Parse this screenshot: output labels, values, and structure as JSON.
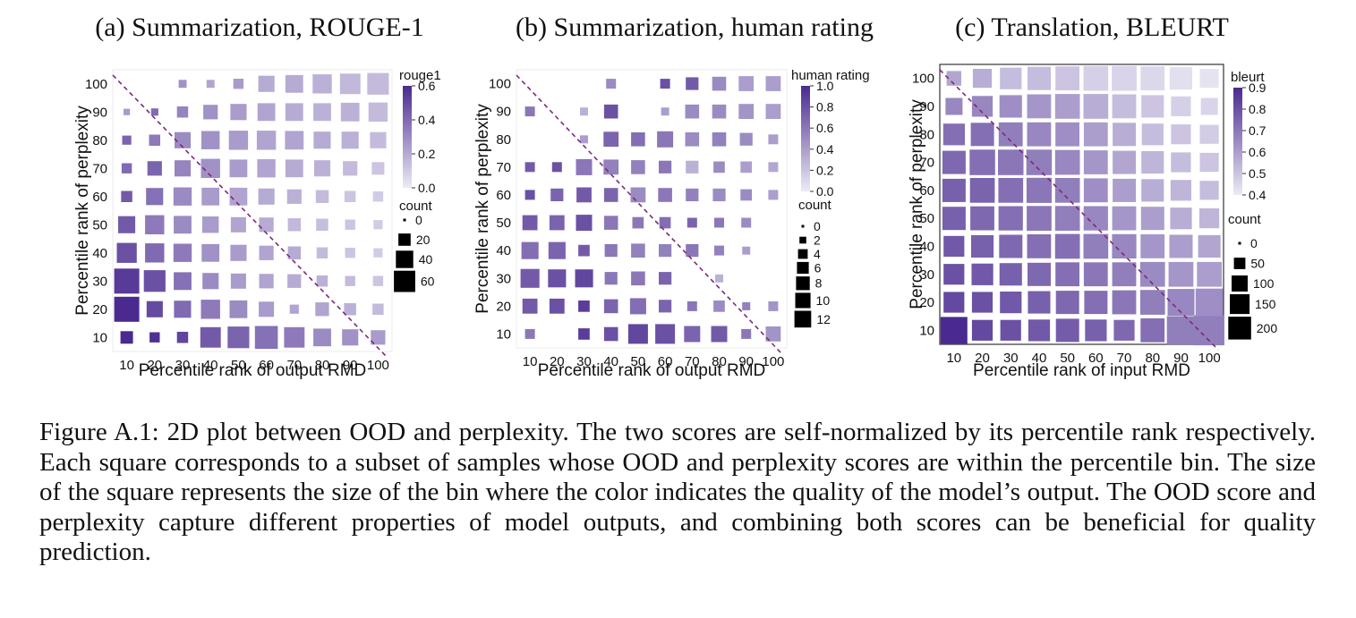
{
  "caption": "Figure A.1: 2D plot between OOD and perplexity. The two scores are self-normalized by its percentile rank respectively. Each square corresponds to a subset of samples whose OOD and perplexity scores are within the percentile bin. The size of the square represents the size of the bin where the color indicates the quality of the model’s output. The OOD score and perplexity capture different properties of model outputs, and combining both scores can be beneficial for quality prediction.",
  "colors": {
    "low": "#ecebf5",
    "high": "#4a2a90",
    "diagonal": "#7a2a7a"
  },
  "chart_data": [
    {
      "type": "heatmap",
      "title": "(a) Summarization, ROUGE-1",
      "xlabel": "Percentile rank of output RMD",
      "ylabel": "Percentile rank of perplexity",
      "x": [
        10,
        20,
        30,
        40,
        50,
        60,
        70,
        80,
        90,
        100
      ],
      "y": [
        10,
        20,
        30,
        40,
        50,
        60,
        70,
        80,
        90,
        100
      ],
      "color_label": "rouge1",
      "color_range": [
        0.0,
        0.6
      ],
      "color_ticks": [
        "0.0",
        "0.2",
        "0.4",
        "0.6"
      ],
      "size_label": "count",
      "size_ticks": [
        "0",
        "20",
        "40",
        "60"
      ],
      "size_max": 60,
      "counts": [
        [
          15,
          10,
          12,
          40,
          45,
          50,
          40,
          30,
          25,
          20
        ],
        [
          60,
          25,
          28,
          35,
          30,
          22,
          8,
          18,
          14,
          12
        ],
        [
          60,
          45,
          30,
          25,
          22,
          20,
          18,
          12,
          10,
          10
        ],
        [
          38,
          35,
          32,
          30,
          25,
          20,
          16,
          12,
          10,
          8
        ],
        [
          28,
          35,
          30,
          26,
          22,
          20,
          16,
          14,
          10,
          8
        ],
        [
          12,
          28,
          32,
          30,
          30,
          25,
          20,
          16,
          12,
          10
        ],
        [
          10,
          20,
          25,
          35,
          30,
          32,
          30,
          25,
          20,
          15
        ],
        [
          8,
          12,
          25,
          32,
          35,
          35,
          33,
          28,
          28,
          25
        ],
        [
          4,
          5,
          12,
          20,
          25,
          30,
          30,
          30,
          33,
          35
        ],
        [
          0,
          0,
          6,
          6,
          10,
          25,
          30,
          35,
          40,
          45
        ]
      ],
      "values": [
        [
          0.6,
          0.58,
          0.52,
          0.45,
          0.42,
          0.38,
          0.35,
          0.3,
          0.28,
          0.25
        ],
        [
          0.62,
          0.5,
          0.4,
          0.35,
          0.3,
          0.25,
          0.22,
          0.22,
          0.18,
          0.15
        ],
        [
          0.55,
          0.48,
          0.38,
          0.3,
          0.25,
          0.22,
          0.2,
          0.18,
          0.15,
          0.12
        ],
        [
          0.48,
          0.4,
          0.35,
          0.28,
          0.25,
          0.22,
          0.2,
          0.15,
          0.12,
          0.1
        ],
        [
          0.45,
          0.35,
          0.3,
          0.25,
          0.22,
          0.2,
          0.16,
          0.14,
          0.12,
          0.1
        ],
        [
          0.45,
          0.38,
          0.3,
          0.25,
          0.22,
          0.2,
          0.18,
          0.15,
          0.12,
          0.1
        ],
        [
          0.4,
          0.42,
          0.32,
          0.28,
          0.25,
          0.22,
          0.2,
          0.18,
          0.15,
          0.12
        ],
        [
          0.42,
          0.35,
          0.3,
          0.28,
          0.25,
          0.22,
          0.22,
          0.2,
          0.18,
          0.15
        ],
        [
          0.25,
          0.4,
          0.32,
          0.28,
          0.25,
          0.22,
          0.2,
          0.18,
          0.18,
          0.15
        ],
        [
          null,
          null,
          0.28,
          0.22,
          0.25,
          0.2,
          0.2,
          0.18,
          0.16,
          0.15
        ]
      ]
    },
    {
      "type": "heatmap",
      "title": "(b) Summarization, human rating",
      "xlabel": "Percentile rank of output RMD",
      "ylabel": "Percentile rank of perplexity",
      "x": [
        10,
        20,
        30,
        40,
        50,
        60,
        70,
        80,
        90,
        100
      ],
      "y": [
        10,
        20,
        30,
        40,
        50,
        60,
        70,
        80,
        90,
        100
      ],
      "color_label": "human rating",
      "color_range": [
        0.0,
        1.0
      ],
      "color_ticks": [
        "0.0",
        "0.2",
        "0.4",
        "0.6",
        "0.8",
        "1.0"
      ],
      "size_label": "count",
      "size_ticks": [
        "0",
        "2",
        "4",
        "6",
        "8",
        "10",
        "12"
      ],
      "size_max": 12,
      "counts": [
        [
          3,
          0,
          4,
          6,
          12,
          12,
          8,
          8,
          3,
          7
        ],
        [
          7,
          7,
          4,
          6,
          8,
          5,
          3,
          4,
          2,
          3
        ],
        [
          11,
          10,
          10,
          5,
          6,
          5,
          0,
          2,
          0,
          0
        ],
        [
          9,
          9,
          4,
          5,
          6,
          5,
          5,
          3,
          2,
          0
        ],
        [
          7,
          7,
          8,
          6,
          4,
          4,
          3,
          3,
          3,
          0
        ],
        [
          3,
          5,
          7,
          6,
          7,
          6,
          5,
          5,
          4,
          3
        ],
        [
          3,
          3,
          8,
          7,
          6,
          5,
          5,
          4,
          4,
          3
        ],
        [
          0,
          0,
          2,
          7,
          6,
          8,
          6,
          6,
          5,
          3
        ],
        [
          3,
          0,
          2,
          6,
          0,
          2,
          6,
          6,
          7,
          7
        ],
        [
          0,
          0,
          0,
          3,
          0,
          3,
          5,
          6,
          7,
          7
        ]
      ],
      "values": [
        [
          0.6,
          null,
          0.9,
          0.8,
          0.85,
          0.8,
          0.7,
          0.75,
          0.6,
          0.45
        ],
        [
          0.75,
          0.8,
          0.9,
          0.7,
          0.65,
          0.7,
          0.6,
          0.5,
          0.55,
          0.45
        ],
        [
          0.75,
          0.8,
          0.85,
          0.6,
          0.6,
          0.7,
          null,
          0.3,
          null,
          null
        ],
        [
          0.65,
          0.7,
          0.75,
          0.6,
          0.55,
          0.55,
          0.6,
          0.55,
          0.4,
          null
        ],
        [
          0.75,
          0.7,
          0.8,
          0.6,
          0.6,
          0.65,
          0.7,
          0.6,
          0.5,
          null
        ],
        [
          0.8,
          0.7,
          0.75,
          0.7,
          0.5,
          0.6,
          0.55,
          0.5,
          0.5,
          0.4
        ],
        [
          0.75,
          0.8,
          0.6,
          0.55,
          0.55,
          0.6,
          0.3,
          0.5,
          0.4,
          0.35
        ],
        [
          null,
          null,
          0.4,
          0.7,
          0.65,
          0.6,
          0.5,
          0.55,
          0.5,
          0.4
        ],
        [
          0.6,
          null,
          0.3,
          0.8,
          null,
          0.4,
          0.5,
          0.5,
          0.45,
          0.4
        ],
        [
          null,
          null,
          null,
          0.5,
          null,
          0.8,
          0.75,
          0.5,
          0.4,
          0.4
        ]
      ]
    },
    {
      "type": "heatmap",
      "title": "(c) Translation, BLEURT",
      "xlabel": "Percentile rank of input RMD",
      "ylabel": "Percentile rank of perplexity",
      "x": [
        10,
        20,
        30,
        40,
        50,
        60,
        70,
        80,
        90,
        100
      ],
      "y": [
        10,
        20,
        30,
        40,
        50,
        60,
        70,
        80,
        90,
        100
      ],
      "color_label": "bleurt",
      "color_range": [
        0.4,
        0.9
      ],
      "color_ticks": [
        "0.4",
        "0.5",
        "0.6",
        "0.7",
        "0.8",
        "0.9"
      ],
      "size_label": "count",
      "size_ticks": [
        "0",
        "50",
        "100",
        "150",
        "200"
      ],
      "size_max": 200,
      "counts": [
        [
          200,
          120,
          120,
          130,
          150,
          130,
          120,
          160,
          220,
          250
        ],
        [
          120,
          120,
          130,
          140,
          150,
          150,
          160,
          170,
          200,
          210
        ],
        [
          120,
          130,
          140,
          150,
          160,
          160,
          160,
          170,
          170,
          170
        ],
        [
          120,
          140,
          150,
          160,
          170,
          170,
          165,
          160,
          150,
          140
        ],
        [
          150,
          160,
          165,
          170,
          170,
          165,
          160,
          150,
          130,
          110
        ],
        [
          150,
          170,
          170,
          175,
          170,
          160,
          150,
          140,
          120,
          100
        ],
        [
          150,
          180,
          180,
          180,
          170,
          160,
          150,
          140,
          110,
          100
        ],
        [
          130,
          150,
          160,
          160,
          160,
          160,
          150,
          130,
          110,
          100
        ],
        [
          80,
          120,
          140,
          160,
          170,
          170,
          160,
          140,
          110,
          80
        ],
        [
          60,
          100,
          130,
          150,
          160,
          170,
          170,
          160,
          140,
          100
        ]
      ],
      "values": [
        [
          0.9,
          0.82,
          0.8,
          0.78,
          0.77,
          0.76,
          0.74,
          0.72,
          0.68,
          0.68
        ],
        [
          0.82,
          0.8,
          0.78,
          0.76,
          0.74,
          0.72,
          0.7,
          0.68,
          0.66,
          0.64
        ],
        [
          0.8,
          0.78,
          0.76,
          0.74,
          0.72,
          0.7,
          0.68,
          0.65,
          0.62,
          0.6
        ],
        [
          0.78,
          0.76,
          0.74,
          0.72,
          0.72,
          0.68,
          0.66,
          0.62,
          0.6,
          0.58
        ],
        [
          0.76,
          0.74,
          0.72,
          0.7,
          0.68,
          0.66,
          0.62,
          0.6,
          0.56,
          0.54
        ],
        [
          0.76,
          0.75,
          0.72,
          0.7,
          0.68,
          0.64,
          0.6,
          0.56,
          0.54,
          0.52
        ],
        [
          0.74,
          0.72,
          0.7,
          0.68,
          0.66,
          0.62,
          0.58,
          0.54,
          0.52,
          0.5
        ],
        [
          0.72,
          0.72,
          0.68,
          0.66,
          0.64,
          0.6,
          0.56,
          0.52,
          0.5,
          0.48
        ],
        [
          0.66,
          0.66,
          0.64,
          0.62,
          0.6,
          0.56,
          0.52,
          0.5,
          0.47,
          0.46
        ],
        [
          0.58,
          0.56,
          0.52,
          0.52,
          0.5,
          0.47,
          0.46,
          0.45,
          0.43,
          0.42
        ]
      ]
    }
  ]
}
